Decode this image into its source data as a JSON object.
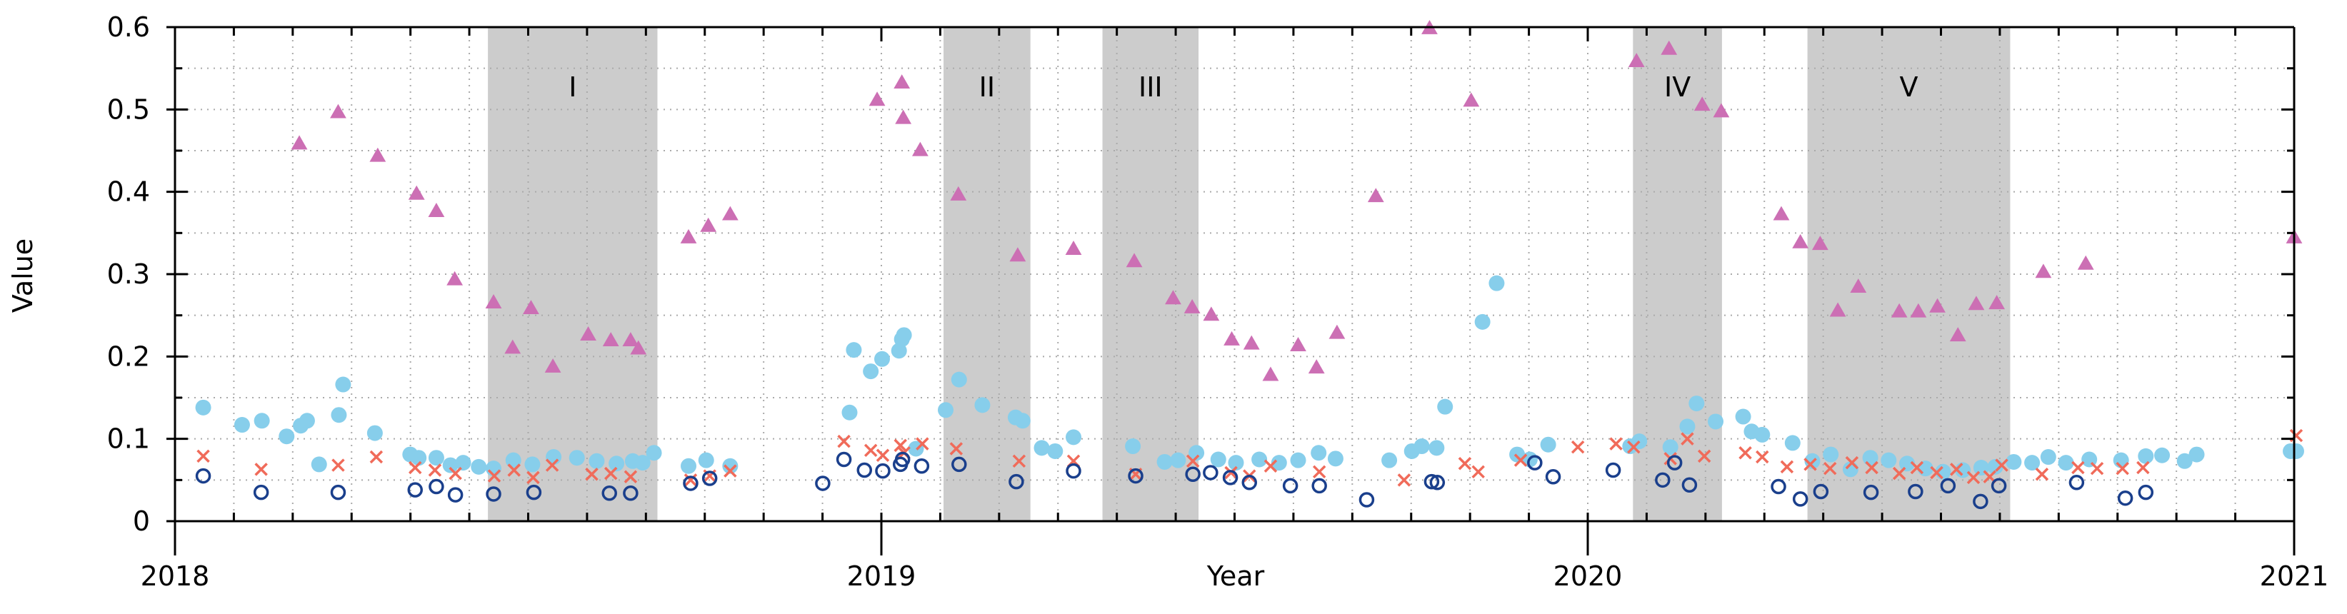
{
  "chart_data": {
    "type": "scatter",
    "title": "",
    "xlabel": "Year",
    "ylabel": "Value",
    "xlim": [
      2018.0,
      2021.0
    ],
    "ylim": [
      0,
      0.6
    ],
    "grid": true,
    "x_ticks": [
      {
        "value": 2018,
        "label": "2018"
      },
      {
        "value": 2019,
        "label": "2019"
      },
      {
        "value": 2020,
        "label": "2020"
      },
      {
        "value": 2021,
        "label": "2021"
      }
    ],
    "y_ticks": [
      {
        "value": 0,
        "label": "0"
      },
      {
        "value": 0.1,
        "label": "0.1"
      },
      {
        "value": 0.2,
        "label": "0.2"
      },
      {
        "value": 0.3,
        "label": "0.3"
      },
      {
        "value": 0.4,
        "label": "0.4"
      },
      {
        "value": 0.5,
        "label": "0.5"
      },
      {
        "value": 0.6,
        "label": "0.6"
      }
    ],
    "shaded_periods": [
      {
        "label": "I",
        "start": 2018.443,
        "end": 2018.683
      },
      {
        "label": "II",
        "start": 2019.088,
        "end": 2019.211
      },
      {
        "label": "III",
        "start": 2019.313,
        "end": 2019.449
      },
      {
        "label": "IV",
        "start": 2020.064,
        "end": 2020.19
      },
      {
        "label": "V",
        "start": 2020.311,
        "end": 2020.598
      }
    ],
    "series": [
      {
        "name": "triangles",
        "marker": "triangle",
        "color": "#cc6fb4",
        "points": [
          [
            2018.176,
            0.458
          ],
          [
            2018.231,
            0.496
          ],
          [
            2018.287,
            0.443
          ],
          [
            2018.342,
            0.397
          ],
          [
            2018.37,
            0.376
          ],
          [
            2018.396,
            0.293
          ],
          [
            2018.451,
            0.265
          ],
          [
            2018.478,
            0.21
          ],
          [
            2018.504,
            0.258
          ],
          [
            2018.535,
            0.187
          ],
          [
            2018.585,
            0.226
          ],
          [
            2018.617,
            0.219
          ],
          [
            2018.645,
            0.219
          ],
          [
            2018.656,
            0.209
          ],
          [
            2018.727,
            0.344
          ],
          [
            2018.755,
            0.358
          ],
          [
            2018.786,
            0.372
          ],
          [
            2018.994,
            0.511
          ],
          [
            2019.029,
            0.532
          ],
          [
            2019.031,
            0.489
          ],
          [
            2019.055,
            0.45
          ],
          [
            2019.109,
            0.396
          ],
          [
            2019.193,
            0.322
          ],
          [
            2019.272,
            0.33
          ],
          [
            2019.358,
            0.315
          ],
          [
            2019.413,
            0.27
          ],
          [
            2019.44,
            0.259
          ],
          [
            2019.467,
            0.25
          ],
          [
            2019.496,
            0.22
          ],
          [
            2019.524,
            0.215
          ],
          [
            2019.551,
            0.177
          ],
          [
            2019.59,
            0.213
          ],
          [
            2019.616,
            0.186
          ],
          [
            2019.645,
            0.228
          ],
          [
            2019.7,
            0.394
          ],
          [
            2019.776,
            0.598
          ],
          [
            2019.835,
            0.51
          ],
          [
            2020.069,
            0.558
          ],
          [
            2020.115,
            0.573
          ],
          [
            2020.162,
            0.505
          ],
          [
            2020.189,
            0.497
          ],
          [
            2020.274,
            0.372
          ],
          [
            2020.301,
            0.338
          ],
          [
            2020.329,
            0.336
          ],
          [
            2020.354,
            0.255
          ],
          [
            2020.383,
            0.284
          ],
          [
            2020.441,
            0.254
          ],
          [
            2020.468,
            0.254
          ],
          [
            2020.495,
            0.26
          ],
          [
            2020.524,
            0.225
          ],
          [
            2020.55,
            0.263
          ],
          [
            2020.579,
            0.264
          ],
          [
            2020.645,
            0.302
          ],
          [
            2020.705,
            0.312
          ],
          [
            2021.0,
            0.344
          ]
        ]
      },
      {
        "name": "light blue dots",
        "marker": "filled-circle",
        "color": "#87ceeb",
        "points": [
          [
            2018.04,
            0.138
          ],
          [
            2018.095,
            0.117
          ],
          [
            2018.123,
            0.122
          ],
          [
            2018.158,
            0.103
          ],
          [
            2018.178,
            0.116
          ],
          [
            2018.187,
            0.122
          ],
          [
            2018.204,
            0.069
          ],
          [
            2018.232,
            0.129
          ],
          [
            2018.238,
            0.166
          ],
          [
            2018.283,
            0.107
          ],
          [
            2018.333,
            0.081
          ],
          [
            2018.345,
            0.077
          ],
          [
            2018.37,
            0.077
          ],
          [
            2018.39,
            0.068
          ],
          [
            2018.408,
            0.071
          ],
          [
            2018.43,
            0.066
          ],
          [
            2018.451,
            0.064
          ],
          [
            2018.479,
            0.074
          ],
          [
            2018.506,
            0.069
          ],
          [
            2018.536,
            0.078
          ],
          [
            2018.569,
            0.077
          ],
          [
            2018.597,
            0.073
          ],
          [
            2018.625,
            0.07
          ],
          [
            2018.648,
            0.073
          ],
          [
            2018.662,
            0.071
          ],
          [
            2018.678,
            0.083
          ],
          [
            2018.727,
            0.067
          ],
          [
            2018.752,
            0.074
          ],
          [
            2018.786,
            0.067
          ],
          [
            2018.955,
            0.132
          ],
          [
            2018.961,
            0.208
          ],
          [
            2018.985,
            0.182
          ],
          [
            2019.001,
            0.197
          ],
          [
            2019.025,
            0.207
          ],
          [
            2019.029,
            0.221
          ],
          [
            2019.032,
            0.226
          ],
          [
            2019.049,
            0.088
          ],
          [
            2019.091,
            0.135
          ],
          [
            2019.11,
            0.172
          ],
          [
            2019.143,
            0.141
          ],
          [
            2019.19,
            0.126
          ],
          [
            2019.2,
            0.122
          ],
          [
            2019.227,
            0.089
          ],
          [
            2019.246,
            0.085
          ],
          [
            2019.272,
            0.102
          ],
          [
            2019.356,
            0.091
          ],
          [
            2019.401,
            0.072
          ],
          [
            2019.42,
            0.074
          ],
          [
            2019.446,
            0.083
          ],
          [
            2019.477,
            0.075
          ],
          [
            2019.502,
            0.071
          ],
          [
            2019.535,
            0.075
          ],
          [
            2019.563,
            0.071
          ],
          [
            2019.59,
            0.074
          ],
          [
            2019.619,
            0.083
          ],
          [
            2019.643,
            0.076
          ],
          [
            2019.719,
            0.074
          ],
          [
            2019.751,
            0.085
          ],
          [
            2019.765,
            0.091
          ],
          [
            2019.786,
            0.089
          ],
          [
            2019.798,
            0.139
          ],
          [
            2019.851,
            0.242
          ],
          [
            2019.871,
            0.289
          ],
          [
            2019.9,
            0.081
          ],
          [
            2019.918,
            0.075
          ],
          [
            2019.944,
            0.093
          ],
          [
            2020.06,
            0.091
          ],
          [
            2020.073,
            0.097
          ],
          [
            2020.117,
            0.09
          ],
          [
            2020.141,
            0.115
          ],
          [
            2020.154,
            0.143
          ],
          [
            2020.181,
            0.121
          ],
          [
            2020.22,
            0.127
          ],
          [
            2020.232,
            0.109
          ],
          [
            2020.247,
            0.105
          ],
          [
            2020.29,
            0.095
          ],
          [
            2020.318,
            0.073
          ],
          [
            2020.344,
            0.081
          ],
          [
            2020.372,
            0.063
          ],
          [
            2020.4,
            0.077
          ],
          [
            2020.426,
            0.074
          ],
          [
            2020.452,
            0.07
          ],
          [
            2020.478,
            0.064
          ],
          [
            2020.503,
            0.06
          ],
          [
            2020.531,
            0.062
          ],
          [
            2020.557,
            0.065
          ],
          [
            2020.577,
            0.066
          ],
          [
            2020.603,
            0.072
          ],
          [
            2020.629,
            0.071
          ],
          [
            2020.652,
            0.078
          ],
          [
            2020.677,
            0.071
          ],
          [
            2020.71,
            0.075
          ],
          [
            2020.755,
            0.074
          ],
          [
            2020.79,
            0.079
          ],
          [
            2020.813,
            0.08
          ],
          [
            2020.845,
            0.073
          ],
          [
            2020.862,
            0.081
          ],
          [
            2020.995,
            0.085
          ],
          [
            2021.003,
            0.085
          ]
        ]
      },
      {
        "name": "red crosses",
        "marker": "x",
        "color": "#f06b5a",
        "points": [
          [
            2018.04,
            0.079
          ],
          [
            2018.122,
            0.063
          ],
          [
            2018.231,
            0.068
          ],
          [
            2018.285,
            0.078
          ],
          [
            2018.34,
            0.065
          ],
          [
            2018.368,
            0.062
          ],
          [
            2018.397,
            0.058
          ],
          [
            2018.452,
            0.055
          ],
          [
            2018.48,
            0.062
          ],
          [
            2018.507,
            0.053
          ],
          [
            2018.534,
            0.068
          ],
          [
            2018.59,
            0.057
          ],
          [
            2018.617,
            0.058
          ],
          [
            2018.645,
            0.054
          ],
          [
            2018.73,
            0.05
          ],
          [
            2018.757,
            0.055
          ],
          [
            2018.786,
            0.061
          ],
          [
            2018.947,
            0.097
          ],
          [
            2018.985,
            0.086
          ],
          [
            2019.002,
            0.08
          ],
          [
            2019.027,
            0.092
          ],
          [
            2019.032,
            0.083
          ],
          [
            2019.058,
            0.094
          ],
          [
            2019.106,
            0.088
          ],
          [
            2019.195,
            0.073
          ],
          [
            2019.272,
            0.073
          ],
          [
            2019.36,
            0.057
          ],
          [
            2019.441,
            0.073
          ],
          [
            2019.495,
            0.059
          ],
          [
            2019.521,
            0.055
          ],
          [
            2019.551,
            0.067
          ],
          [
            2019.62,
            0.06
          ],
          [
            2019.74,
            0.05
          ],
          [
            2019.826,
            0.07
          ],
          [
            2019.845,
            0.06
          ],
          [
            2019.905,
            0.074
          ],
          [
            2019.986,
            0.09
          ],
          [
            2020.04,
            0.094
          ],
          [
            2020.065,
            0.09
          ],
          [
            2020.117,
            0.076
          ],
          [
            2020.141,
            0.1
          ],
          [
            2020.165,
            0.079
          ],
          [
            2020.223,
            0.083
          ],
          [
            2020.247,
            0.078
          ],
          [
            2020.282,
            0.066
          ],
          [
            2020.315,
            0.069
          ],
          [
            2020.343,
            0.064
          ],
          [
            2020.374,
            0.071
          ],
          [
            2020.402,
            0.065
          ],
          [
            2020.441,
            0.058
          ],
          [
            2020.466,
            0.065
          ],
          [
            2020.494,
            0.059
          ],
          [
            2020.522,
            0.063
          ],
          [
            2020.546,
            0.053
          ],
          [
            2020.569,
            0.054
          ],
          [
            2020.586,
            0.068
          ],
          [
            2020.643,
            0.057
          ],
          [
            2020.694,
            0.065
          ],
          [
            2020.721,
            0.064
          ],
          [
            2020.757,
            0.064
          ],
          [
            2020.786,
            0.065
          ],
          [
            2021.003,
            0.104
          ]
        ]
      },
      {
        "name": "navy circles",
        "marker": "open-circle",
        "color": "#1a3f8c",
        "points": [
          [
            2018.04,
            0.055
          ],
          [
            2018.122,
            0.035
          ],
          [
            2018.231,
            0.035
          ],
          [
            2018.34,
            0.038
          ],
          [
            2018.37,
            0.042
          ],
          [
            2018.397,
            0.032
          ],
          [
            2018.451,
            0.033
          ],
          [
            2018.508,
            0.035
          ],
          [
            2018.615,
            0.034
          ],
          [
            2018.645,
            0.034
          ],
          [
            2018.73,
            0.046
          ],
          [
            2018.757,
            0.052
          ],
          [
            2018.917,
            0.046
          ],
          [
            2018.947,
            0.075
          ],
          [
            2018.976,
            0.062
          ],
          [
            2019.002,
            0.061
          ],
          [
            2019.027,
            0.069
          ],
          [
            2019.03,
            0.075
          ],
          [
            2019.057,
            0.067
          ],
          [
            2019.11,
            0.069
          ],
          [
            2019.191,
            0.048
          ],
          [
            2019.272,
            0.061
          ],
          [
            2019.36,
            0.055
          ],
          [
            2019.441,
            0.057
          ],
          [
            2019.466,
            0.059
          ],
          [
            2019.494,
            0.053
          ],
          [
            2019.521,
            0.047
          ],
          [
            2019.579,
            0.043
          ],
          [
            2019.62,
            0.043
          ],
          [
            2019.687,
            0.026
          ],
          [
            2019.779,
            0.048
          ],
          [
            2019.787,
            0.047
          ],
          [
            2019.925,
            0.071
          ],
          [
            2019.951,
            0.054
          ],
          [
            2020.036,
            0.062
          ],
          [
            2020.106,
            0.05
          ],
          [
            2020.123,
            0.071
          ],
          [
            2020.144,
            0.044
          ],
          [
            2020.27,
            0.042
          ],
          [
            2020.301,
            0.027
          ],
          [
            2020.33,
            0.036
          ],
          [
            2020.401,
            0.035
          ],
          [
            2020.464,
            0.036
          ],
          [
            2020.51,
            0.043
          ],
          [
            2020.556,
            0.024
          ],
          [
            2020.582,
            0.043
          ],
          [
            2020.692,
            0.047
          ],
          [
            2020.761,
            0.028
          ],
          [
            2020.79,
            0.035
          ]
        ]
      }
    ]
  }
}
